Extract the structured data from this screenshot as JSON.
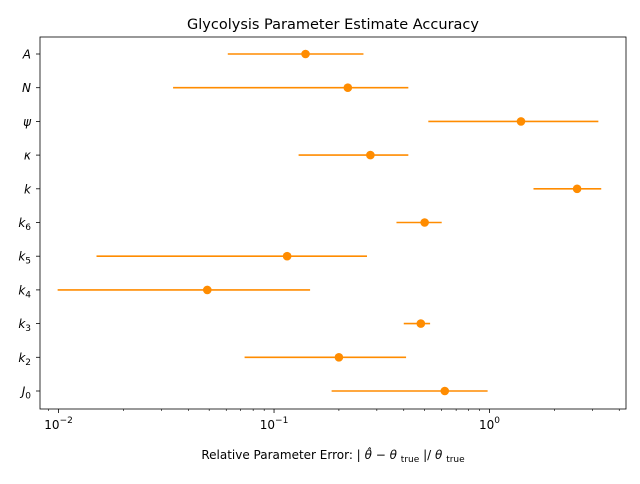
{
  "chart_data": {
    "type": "scatter",
    "title": "Glycolysis Parameter Estimate Accuracy",
    "xlabel": {
      "prefix": "Relative Parameter Error: |",
      "theta_hat": "θ̂",
      "minus": " − ",
      "theta": "θ",
      "sub_true": "true",
      "slash": "|/"
    },
    "ylabel": "",
    "xscale": "log",
    "xlim": [
      0.0082,
      4.3
    ],
    "grid": false,
    "legend": "none",
    "x_ticks": [
      {
        "value": 0.01,
        "base": "10",
        "exp": "−2"
      },
      {
        "value": 0.1,
        "base": "10",
        "exp": "−1"
      },
      {
        "value": 1,
        "base": "10",
        "exp": "0"
      }
    ],
    "categories": [
      {
        "base": "A",
        "sub": ""
      },
      {
        "base": "N",
        "sub": ""
      },
      {
        "base": "ψ",
        "sub": ""
      },
      {
        "base": "κ",
        "sub": ""
      },
      {
        "base": "k",
        "sub": ""
      },
      {
        "base": "k",
        "sub": "6"
      },
      {
        "base": "k",
        "sub": "5"
      },
      {
        "base": "k",
        "sub": "4"
      },
      {
        "base": "k",
        "sub": "3"
      },
      {
        "base": "k",
        "sub": "2"
      },
      {
        "base": "J",
        "sub": "0"
      }
    ],
    "points": [
      {
        "value": 0.14,
        "low": 0.061,
        "high": 0.26
      },
      {
        "value": 0.22,
        "low": 0.034,
        "high": 0.42
      },
      {
        "value": 1.4,
        "low": 0.52,
        "high": 3.2
      },
      {
        "value": 0.28,
        "low": 0.13,
        "high": 0.42
      },
      {
        "value": 2.55,
        "low": 1.6,
        "high": 3.3
      },
      {
        "value": 0.5,
        "low": 0.37,
        "high": 0.6
      },
      {
        "value": 0.115,
        "low": 0.015,
        "high": 0.27
      },
      {
        "value": 0.049,
        "low": 0.0099,
        "high": 0.147
      },
      {
        "value": 0.48,
        "low": 0.4,
        "high": 0.53
      },
      {
        "value": 0.2,
        "low": 0.073,
        "high": 0.41
      },
      {
        "value": 0.62,
        "low": 0.185,
        "high": 0.98
      }
    ],
    "colors": {
      "series": "#ff8c00",
      "axis": "#000000"
    }
  }
}
